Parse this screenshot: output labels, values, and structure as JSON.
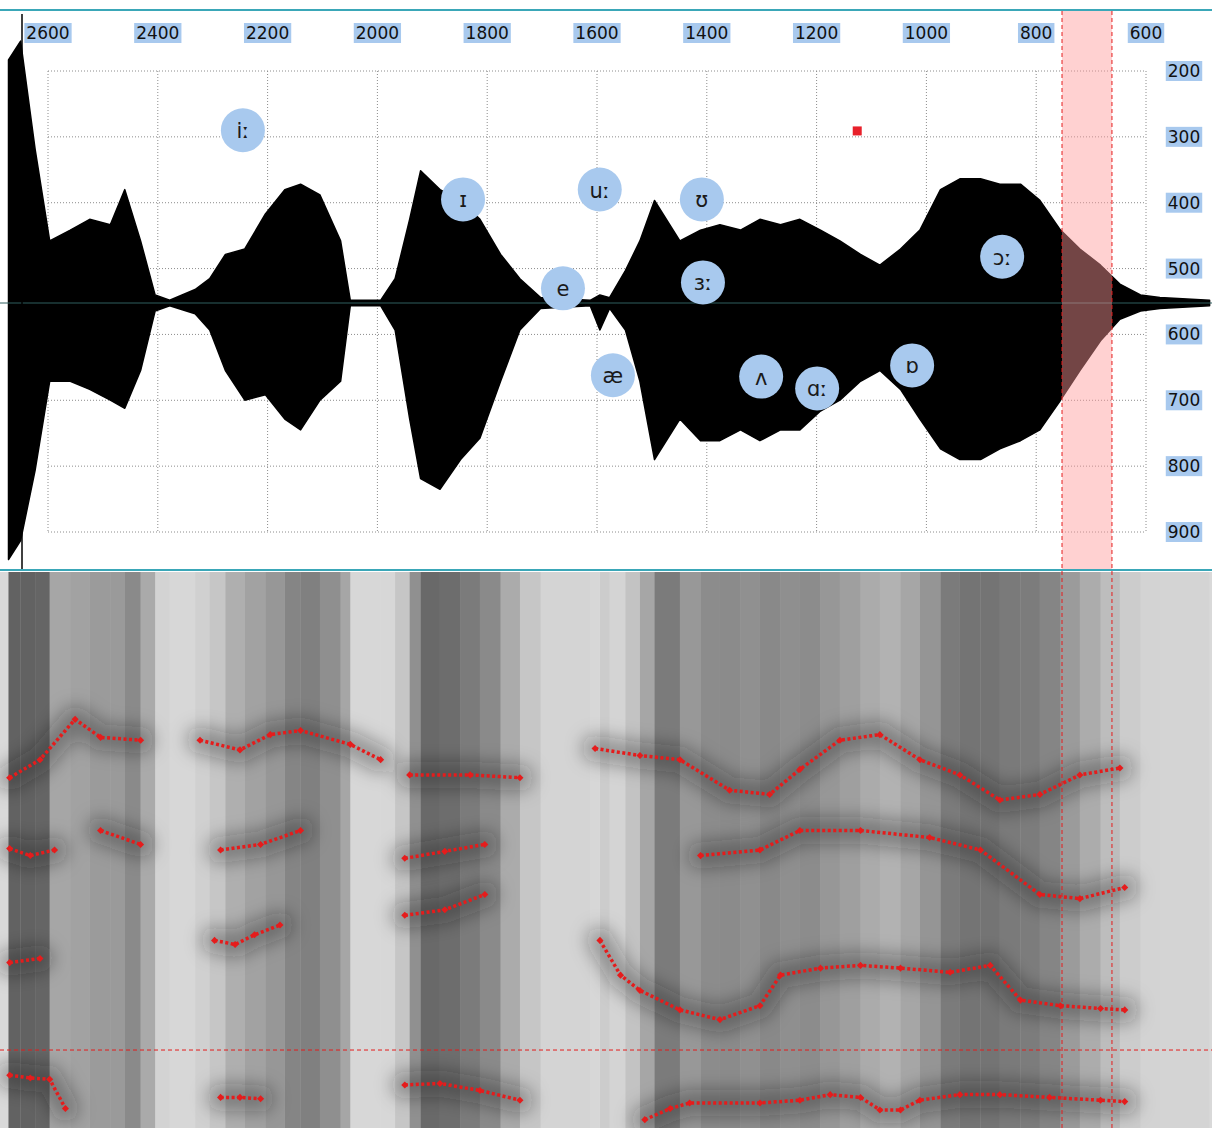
{
  "chart_data": {
    "type": "scatter",
    "labels": [
      "iː",
      "ɪ",
      "uː",
      "ʊ",
      "e",
      "ɜː",
      "ɔː",
      "æ",
      "ʌ",
      "ɑː",
      "ɒ"
    ],
    "x": [
      2245,
      1844,
      1595,
      1409,
      1662,
      1407,
      862,
      1571,
      1301,
      1199,
      1026
    ],
    "values": [
      290,
      395,
      380,
      395,
      530,
      521,
      482,
      662,
      664,
      682,
      647
    ],
    "color": "#a8c9ee",
    "xlim": [
      2600,
      600
    ],
    "ylim": [
      200,
      900
    ],
    "xticks": [
      2600,
      2400,
      2200,
      2000,
      1800,
      1600,
      1400,
      1200,
      1000,
      800,
      600
    ],
    "yticks": [
      200,
      300,
      400,
      500,
      600,
      700,
      800,
      900
    ],
    "grid": true,
    "current_point": {
      "x": 1126,
      "y": 291
    },
    "selection": [
      753,
      662
    ],
    "waveform": {
      "tlim": [
        0,
        100
      ],
      "amplim": [
        -1,
        1
      ],
      "t": [
        0.7,
        1.7,
        2.9,
        4.1,
        5.8,
        7.4,
        9.1,
        10.3,
        11.6,
        12.8,
        14.0,
        16.1,
        17.3,
        18.6,
        20.2,
        21.9,
        23.5,
        24.8,
        26.4,
        28.1,
        28.9,
        31.4,
        32.6,
        33.8,
        34.7,
        36.3,
        38.0,
        39.6,
        41.3,
        42.9,
        44.6,
        48.7,
        49.5,
        50.3,
        51.6,
        52.8,
        54.0,
        56.1,
        57.8,
        59.4,
        61.1,
        62.7,
        64.4,
        66.0,
        67.7,
        69.3,
        71.0,
        72.6,
        74.3,
        75.9,
        77.6,
        79.2,
        80.9,
        82.5,
        84.2,
        85.8,
        87.5,
        89.1,
        90.8,
        92.4,
        94.1,
        95.7,
        99.8
      ],
      "upper": [
        0.9,
        0.97,
        0.57,
        0.23,
        0.27,
        0.31,
        0.29,
        0.42,
        0.23,
        0.03,
        0.01,
        0.05,
        0.09,
        0.18,
        0.2,
        0.33,
        0.42,
        0.44,
        0.4,
        0.23,
        0.01,
        0.01,
        0.09,
        0.31,
        0.49,
        0.42,
        0.38,
        0.31,
        0.18,
        0.09,
        0.02,
        0.01,
        0.03,
        0.02,
        0.12,
        0.23,
        0.38,
        0.23,
        0.27,
        0.29,
        0.27,
        0.31,
        0.29,
        0.31,
        0.27,
        0.23,
        0.18,
        0.14,
        0.2,
        0.27,
        0.42,
        0.46,
        0.46,
        0.44,
        0.44,
        0.38,
        0.27,
        0.2,
        0.14,
        0.07,
        0.03,
        0.02,
        0.01
      ],
      "lower": [
        -0.95,
        -0.88,
        -0.62,
        -0.29,
        -0.29,
        -0.32,
        -0.36,
        -0.39,
        -0.25,
        -0.03,
        -0.01,
        -0.04,
        -0.1,
        -0.25,
        -0.36,
        -0.34,
        -0.43,
        -0.47,
        -0.36,
        -0.29,
        -0.01,
        -0.01,
        -0.1,
        -0.43,
        -0.65,
        -0.69,
        -0.58,
        -0.5,
        -0.29,
        -0.1,
        -0.02,
        -0.01,
        -0.1,
        -0.02,
        -0.1,
        -0.29,
        -0.58,
        -0.43,
        -0.51,
        -0.51,
        -0.47,
        -0.51,
        -0.47,
        -0.47,
        -0.4,
        -0.36,
        -0.29,
        -0.25,
        -0.32,
        -0.43,
        -0.54,
        -0.58,
        -0.58,
        -0.54,
        -0.51,
        -0.47,
        -0.36,
        -0.25,
        -0.14,
        -0.06,
        -0.03,
        -0.02,
        -0.01
      ]
    },
    "spectrogram": {
      "ylim": [
        0,
        4000
      ],
      "cursor": 561,
      "tracks": [
        {
          "t": [
            0.8,
            2.5,
            4.1,
            5.4,
            null,
            18.2,
            19.8,
            21.5,
            null,
            33.4,
            36.3,
            39.6,
            42.9,
            null,
            53.2,
            55.3,
            56.9,
            62.7,
            66.0,
            68.5,
            71.0,
            72.6,
            74.3,
            75.9,
            79.2,
            82.5,
            86.6,
            90.8,
            92.8
          ],
          "f": [
            380,
            360,
            350,
            140,
            null,
            220,
            220,
            210,
            null,
            310,
            320,
            270,
            200,
            null,
            60,
            140,
            180,
            180,
            200,
            240,
            220,
            130,
            130,
            200,
            240,
            240,
            220,
            200,
            190
          ]
        },
        {
          "t": [
            0.8,
            3.3,
            null,
            17.7,
            19.4,
            21.0,
            23.1,
            null,
            33.4,
            36.7,
            40.0,
            null,
            49.5,
            51.2,
            52.8,
            56.1,
            59.4,
            62.7,
            64.4,
            67.7,
            71.0,
            74.3,
            78.4,
            81.7,
            84.2,
            87.5,
            90.8,
            92.8
          ],
          "f": [
            1190,
            1220,
            null,
            1350,
            1320,
            1390,
            1460,
            null,
            1530,
            1570,
            1680,
            null,
            1350,
            1100,
            990,
            850,
            780,
            880,
            1100,
            1150,
            1170,
            1150,
            1120,
            1170,
            920,
            880,
            860,
            850
          ]
        },
        {
          "t": [
            0.8,
            2.5,
            4.5,
            null,
            8.3,
            11.6,
            null,
            18.2,
            21.5,
            24.8,
            null,
            33.4,
            36.7,
            40.0,
            null,
            57.8,
            62.7,
            66.0,
            71.0,
            76.7,
            80.9,
            85.8,
            89.1,
            92.8
          ],
          "f": [
            2010,
            1960,
            2000,
            null,
            2140,
            2040,
            null,
            2000,
            2040,
            2140,
            null,
            1940,
            1990,
            2040,
            null,
            1960,
            2000,
            2140,
            2140,
            2090,
            2000,
            1680,
            1650,
            1730
          ]
        },
        {
          "t": [
            0.8,
            3.3,
            6.2,
            8.3,
            11.6,
            null,
            16.5,
            19.8,
            22.3,
            24.8,
            28.9,
            31.4,
            null,
            33.8,
            38.8,
            42.9,
            null,
            49.1,
            52.8,
            56.1,
            60.2,
            63.5,
            66.0,
            69.3,
            72.6,
            75.9,
            79.2,
            82.5,
            85.8,
            89.1,
            92.4
          ],
          "f": [
            2520,
            2650,
            2940,
            2810,
            2790,
            null,
            2790,
            2720,
            2830,
            2860,
            2760,
            2650,
            null,
            2540,
            2540,
            2520,
            null,
            2730,
            2680,
            2650,
            2430,
            2400,
            2580,
            2790,
            2830,
            2650,
            2540,
            2360,
            2400,
            2540,
            2590
          ]
        }
      ]
    }
  }
}
